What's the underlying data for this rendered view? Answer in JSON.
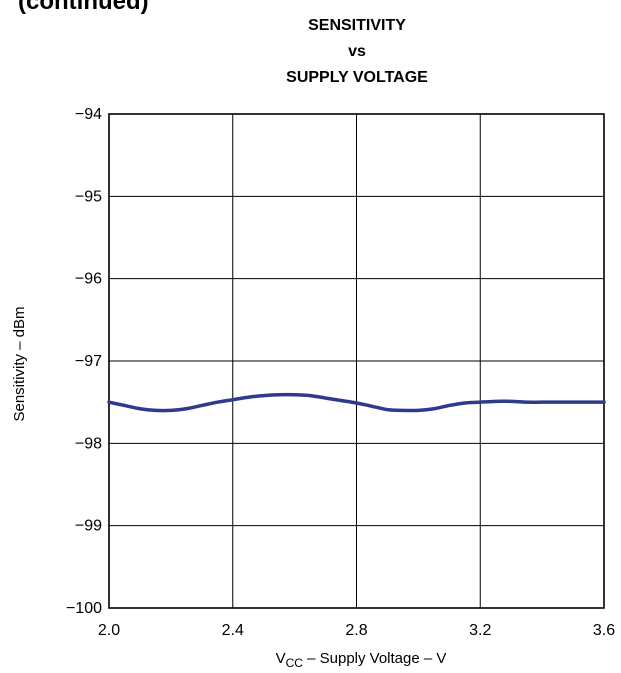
{
  "page_header_fragment": "(continued)",
  "chart_data": {
    "type": "line",
    "title_lines": [
      "SENSITIVITY",
      "vs",
      "SUPPLY VOLTAGE"
    ],
    "xlabel": {
      "prefix": "V",
      "subscript": "CC",
      "suffix": " – Supply Voltage – V"
    },
    "ylabel": "Sensitivity – dBm",
    "xlim": [
      2.0,
      3.6
    ],
    "ylim": [
      -100,
      -94
    ],
    "x_ticks": [
      2.0,
      2.4,
      2.8,
      3.2,
      3.6
    ],
    "x_tick_labels": [
      "2.0",
      "2.4",
      "2.8",
      "3.2",
      "3.6"
    ],
    "y_ticks": [
      -94,
      -95,
      -96,
      -97,
      -98,
      -99,
      -100
    ],
    "y_tick_labels": [
      "−94",
      "−95",
      "−96",
      "−97",
      "−98",
      "−99",
      "−100"
    ],
    "grid": true,
    "line_color": "#2e3a8c",
    "series": [
      {
        "x": [
          2.0,
          2.05,
          2.1,
          2.15,
          2.2,
          2.25,
          2.3,
          2.35,
          2.4,
          2.45,
          2.5,
          2.55,
          2.6,
          2.65,
          2.7,
          2.75,
          2.8,
          2.85,
          2.9,
          2.95,
          3.0,
          3.05,
          3.1,
          3.15,
          3.2,
          3.25,
          3.3,
          3.35,
          3.4,
          3.45,
          3.5,
          3.55,
          3.6
        ],
        "y": [
          -97.5,
          -97.54,
          -97.58,
          -97.6,
          -97.6,
          -97.58,
          -97.54,
          -97.5,
          -97.47,
          -97.44,
          -97.42,
          -97.41,
          -97.41,
          -97.42,
          -97.45,
          -97.48,
          -97.51,
          -97.55,
          -97.59,
          -97.6,
          -97.6,
          -97.58,
          -97.54,
          -97.51,
          -97.5,
          -97.49,
          -97.49,
          -97.5,
          -97.5,
          -97.5,
          -97.5,
          -97.5,
          -97.5
        ]
      }
    ]
  }
}
